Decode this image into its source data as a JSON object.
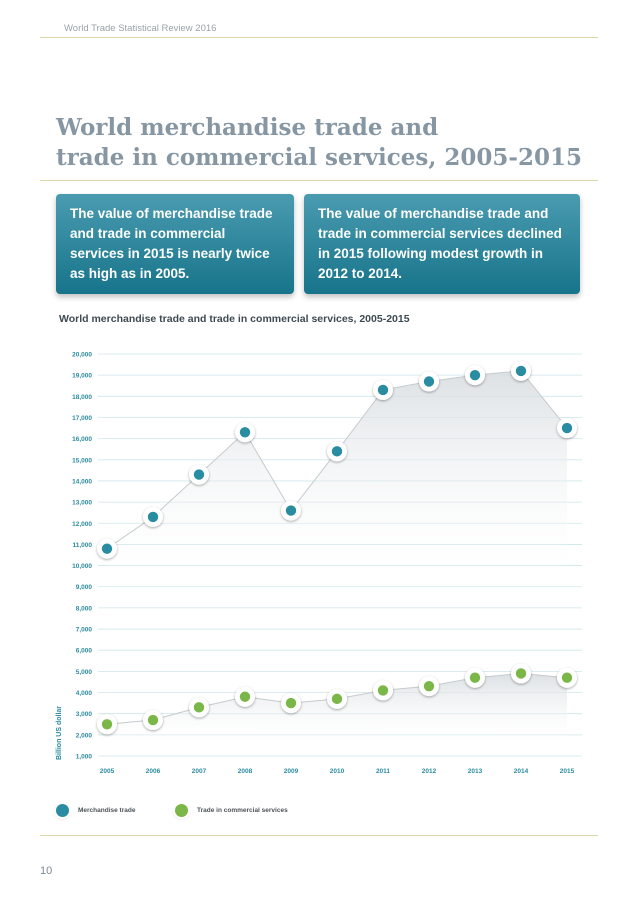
{
  "header": {
    "running_title": "World Trade Statistical Review 2016"
  },
  "page": {
    "title_line1": "World merchandise trade and",
    "title_line2": "trade in commercial services, 2005-2015",
    "page_number": "10"
  },
  "callouts": [
    {
      "text": "The value of merchandise trade and trade in commercial services in 2015 is nearly twice as high as in 2005."
    },
    {
      "text": "The value of merchandise trade and trade in commercial services declined in 2015 following modest growth in 2012 to 2014."
    }
  ],
  "colors": {
    "merchandise": "#2a8ca1",
    "services": "#7ab648",
    "title": "#8697a3",
    "callout": "#1f7d91",
    "rule": "#dcd8a6"
  },
  "chart_data": {
    "type": "line",
    "title": "World merchandise trade and trade in commercial services, 2005-2015",
    "ylabel": "Billion US dollar",
    "xlabel": "",
    "ylim": [
      1000,
      20000
    ],
    "yticks": [
      "1,000",
      "2,000",
      "3,000",
      "4,000",
      "5,000",
      "6,000",
      "7,000",
      "8,000",
      "9,000",
      "10,000",
      "11,000",
      "12,000",
      "13,000",
      "14,000",
      "15,000",
      "16,000",
      "17,000",
      "18,000",
      "19,000",
      "20,000"
    ],
    "ytick_values": [
      1000,
      2000,
      3000,
      4000,
      5000,
      6000,
      7000,
      8000,
      9000,
      10000,
      11000,
      12000,
      13000,
      14000,
      15000,
      16000,
      17000,
      18000,
      19000,
      20000
    ],
    "categories": [
      "2005",
      "2006",
      "2007",
      "2008",
      "2009",
      "2010",
      "2011",
      "2012",
      "2013",
      "2014",
      "2015"
    ],
    "grid": true,
    "legend_position": "bottom-left",
    "series": [
      {
        "name": "Merchandise trade",
        "color": "#2a8ca1",
        "values": [
          10800,
          12300,
          14300,
          16300,
          12600,
          15400,
          18300,
          18700,
          19000,
          19200,
          16500
        ]
      },
      {
        "name": "Trade in commercial services",
        "color": "#7ab648",
        "values": [
          2500,
          2700,
          3300,
          3800,
          3500,
          3700,
          4100,
          4300,
          4700,
          4900,
          4700
        ]
      }
    ]
  }
}
